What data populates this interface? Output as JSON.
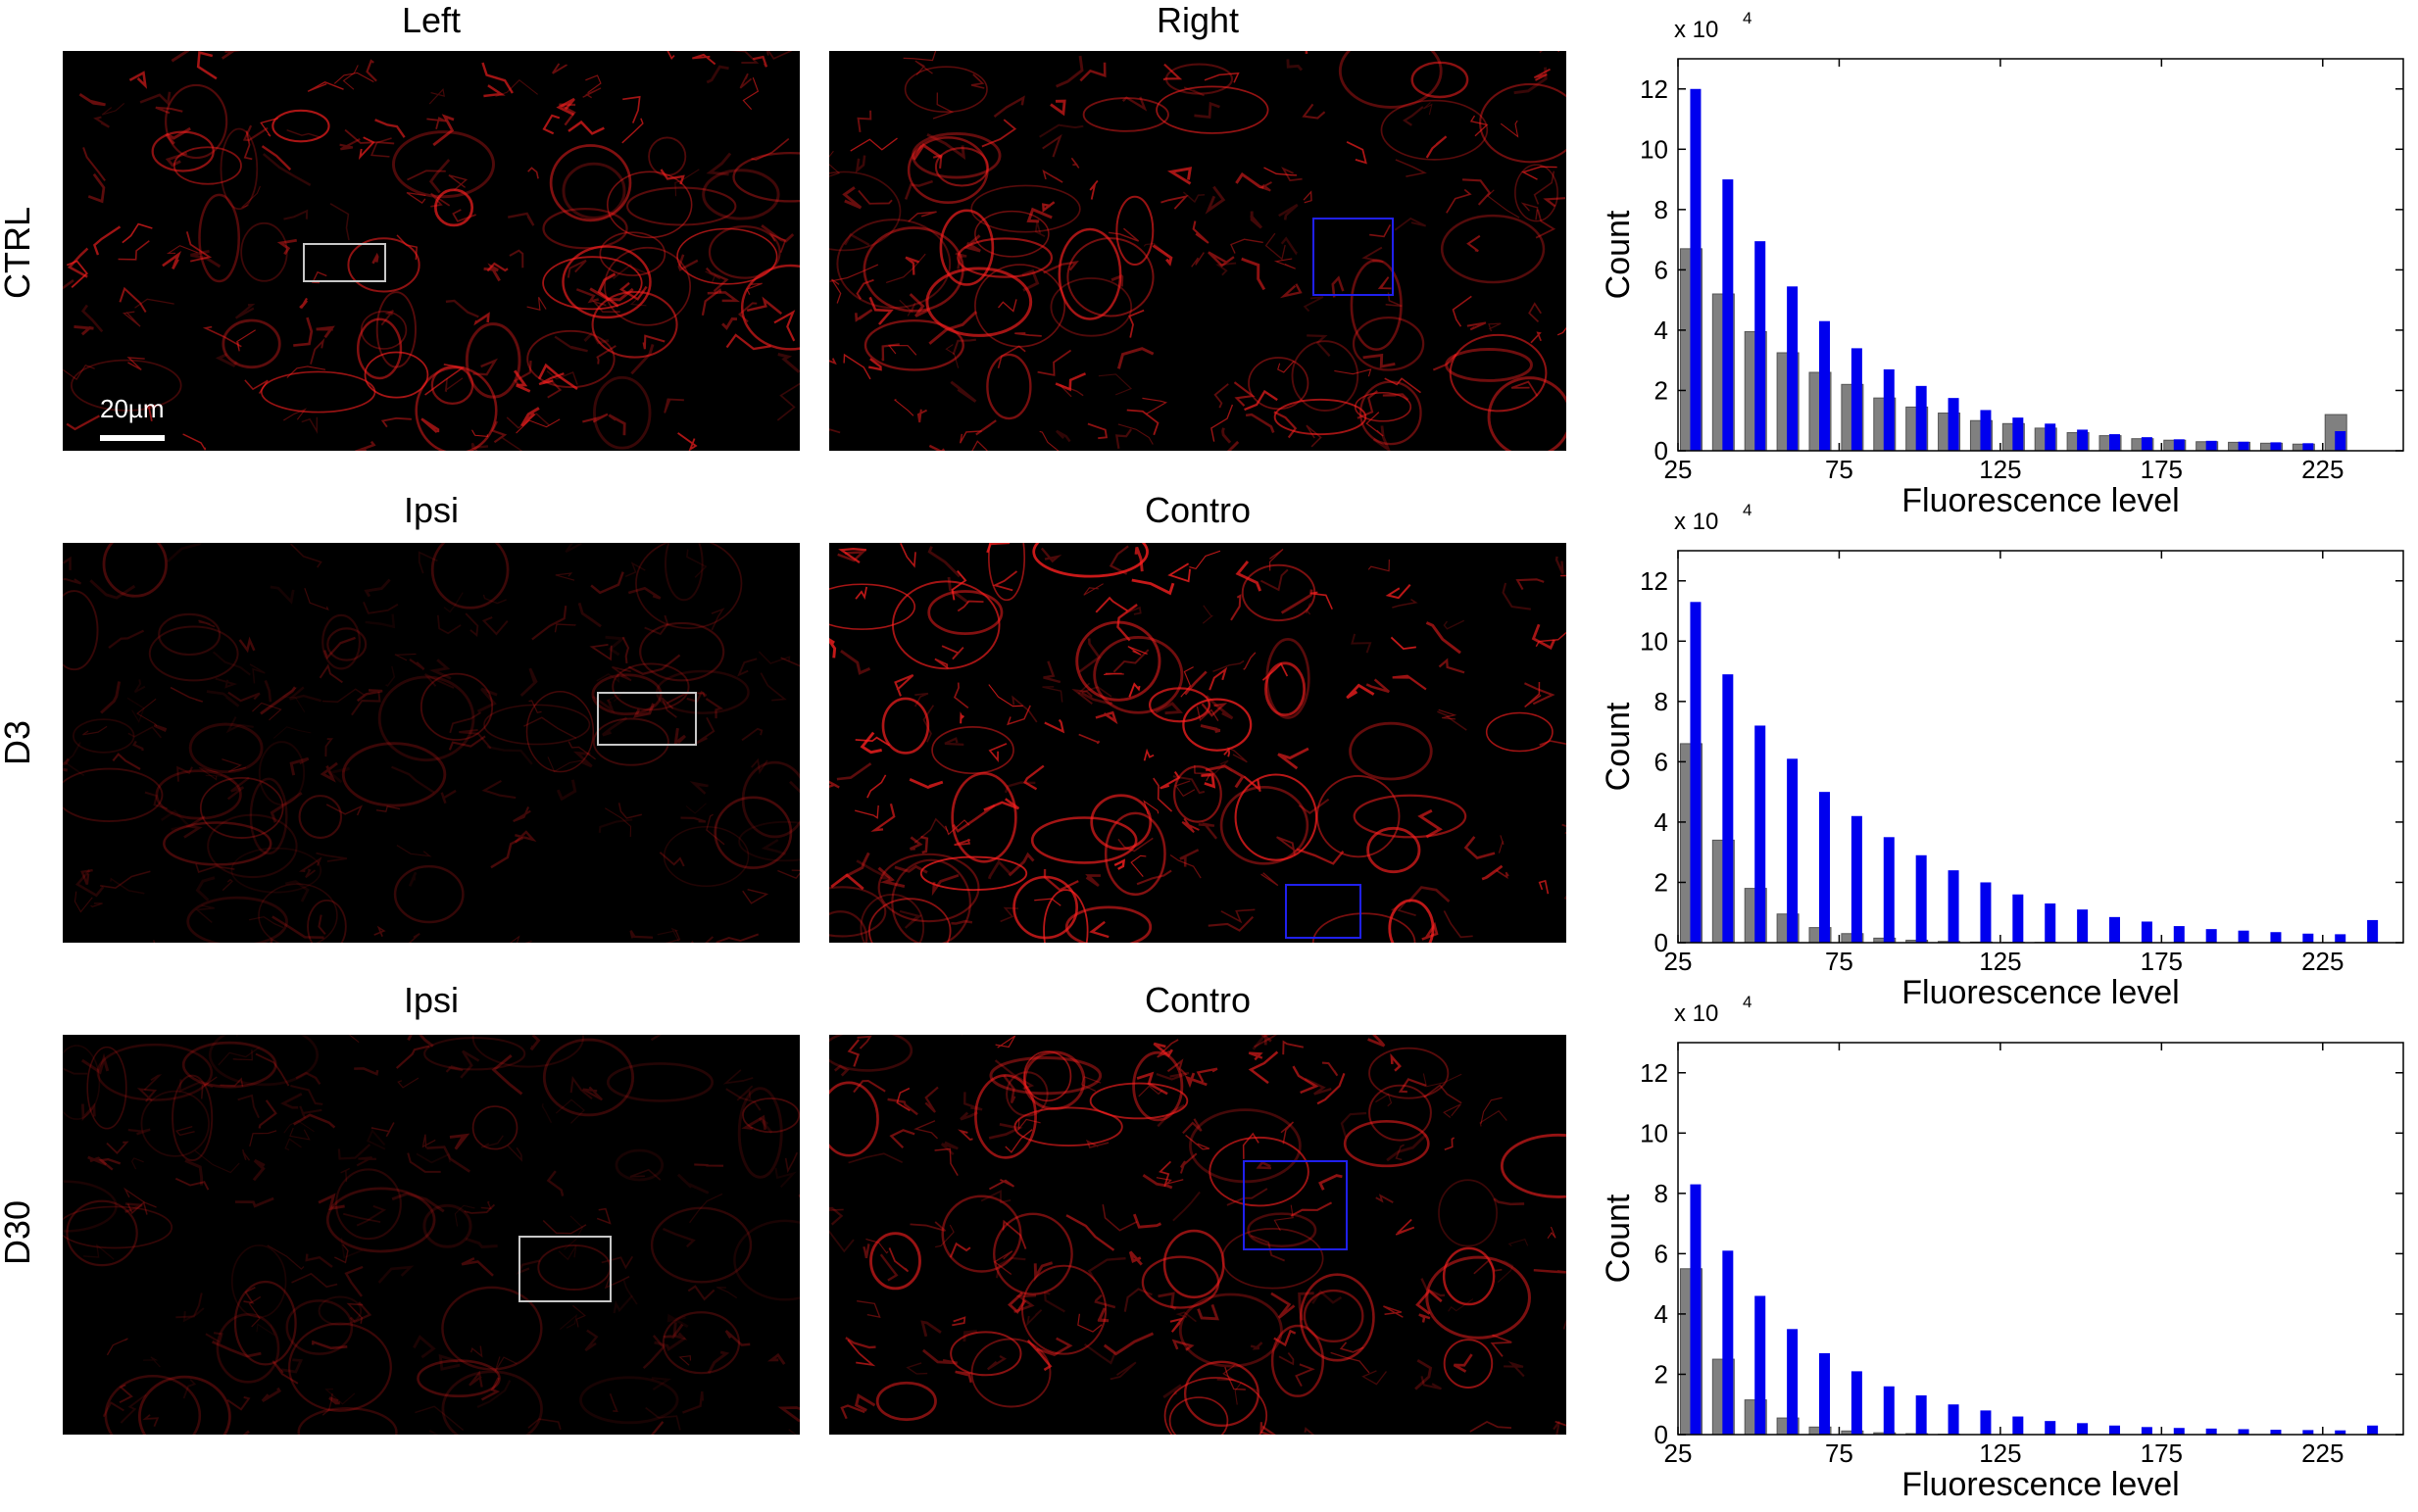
{
  "columns": {
    "row1": [
      "Left",
      "Right"
    ],
    "row2": [
      "Ipsi",
      "Contro"
    ],
    "row3": [
      "Ipsi",
      "Contro"
    ]
  },
  "rows": [
    "CTRL",
    "D3",
    "D30"
  ],
  "scale_bar": "20µm",
  "colors": {
    "series_a": "#0000ee",
    "series_b": "#808080",
    "stain": "#ff2020"
  },
  "chart_data": [
    {
      "type": "bar",
      "row": "CTRL",
      "xlabel": "Fluorescence level",
      "ylabel": "Count",
      "y_multiplier": "x 10",
      "y_multiplier_exp": "4",
      "xticks": [
        25,
        75,
        125,
        175,
        225
      ],
      "yticks": [
        0,
        2,
        4,
        6,
        8,
        10,
        12
      ],
      "xlim": [
        25,
        250
      ],
      "ylim": [
        0,
        13
      ],
      "x": [
        30,
        40,
        50,
        60,
        70,
        80,
        90,
        100,
        110,
        120,
        130,
        140,
        150,
        160,
        170,
        180,
        190,
        200,
        210,
        220,
        230
      ],
      "series": [
        {
          "color": "#808080",
          "values": [
            6.7,
            5.2,
            3.95,
            3.25,
            2.6,
            2.2,
            1.75,
            1.45,
            1.25,
            1.0,
            0.9,
            0.75,
            0.6,
            0.5,
            0.4,
            0.35,
            0.3,
            0.28,
            0.25,
            0.22,
            1.2
          ]
        },
        {
          "color": "#0000ee",
          "values": [
            12.0,
            9.0,
            6.95,
            5.45,
            4.3,
            3.4,
            2.7,
            2.15,
            1.75,
            1.35,
            1.1,
            0.9,
            0.7,
            0.55,
            0.45,
            0.38,
            0.33,
            0.3,
            0.28,
            0.25,
            0.65
          ]
        }
      ]
    },
    {
      "type": "bar",
      "row": "D3",
      "xlabel": "Fluorescence level",
      "ylabel": "Count",
      "y_multiplier": "x 10",
      "y_multiplier_exp": "4",
      "xticks": [
        25,
        75,
        125,
        175,
        225
      ],
      "yticks": [
        0,
        2,
        4,
        6,
        8,
        10,
        12
      ],
      "xlim": [
        25,
        250
      ],
      "ylim": [
        0,
        13
      ],
      "x": [
        30,
        40,
        50,
        60,
        70,
        80,
        90,
        100,
        110,
        120,
        130,
        140,
        150,
        160,
        170,
        180,
        190,
        200,
        210,
        220,
        230,
        240
      ],
      "series": [
        {
          "color": "#808080",
          "values": [
            6.6,
            3.4,
            1.8,
            0.95,
            0.5,
            0.3,
            0.15,
            0.08,
            0.04,
            0.02,
            0.01,
            0.01,
            0.0,
            0.0,
            0.0,
            0.0,
            0.0,
            0.0,
            0.0,
            0.0,
            0.0,
            0.0
          ]
        },
        {
          "color": "#0000ee",
          "values": [
            11.3,
            8.9,
            7.2,
            6.1,
            5.0,
            4.2,
            3.5,
            2.9,
            2.4,
            2.0,
            1.6,
            1.3,
            1.1,
            0.85,
            0.7,
            0.55,
            0.45,
            0.4,
            0.35,
            0.3,
            0.28,
            0.75
          ]
        }
      ]
    },
    {
      "type": "bar",
      "row": "D30",
      "xlabel": "Fluorescence level",
      "ylabel": "Count",
      "y_multiplier": "x 10",
      "y_multiplier_exp": "4",
      "xticks": [
        25,
        75,
        125,
        175,
        225
      ],
      "yticks": [
        0,
        2,
        4,
        6,
        8,
        10,
        12
      ],
      "xlim": [
        25,
        250
      ],
      "ylim": [
        0,
        13
      ],
      "x": [
        30,
        40,
        50,
        60,
        70,
        80,
        90,
        100,
        110,
        120,
        130,
        140,
        150,
        160,
        170,
        180,
        190,
        200,
        210,
        220,
        230,
        240
      ],
      "series": [
        {
          "color": "#808080",
          "values": [
            5.5,
            2.5,
            1.15,
            0.55,
            0.25,
            0.12,
            0.06,
            0.03,
            0.01,
            0.0,
            0.0,
            0.0,
            0.0,
            0.0,
            0.0,
            0.0,
            0.0,
            0.0,
            0.0,
            0.0,
            0.0,
            0.0
          ]
        },
        {
          "color": "#0000ee",
          "values": [
            8.3,
            6.1,
            4.6,
            3.5,
            2.7,
            2.1,
            1.6,
            1.3,
            1.0,
            0.8,
            0.6,
            0.45,
            0.38,
            0.3,
            0.25,
            0.22,
            0.2,
            0.18,
            0.16,
            0.15,
            0.14,
            0.3
          ]
        }
      ]
    }
  ]
}
